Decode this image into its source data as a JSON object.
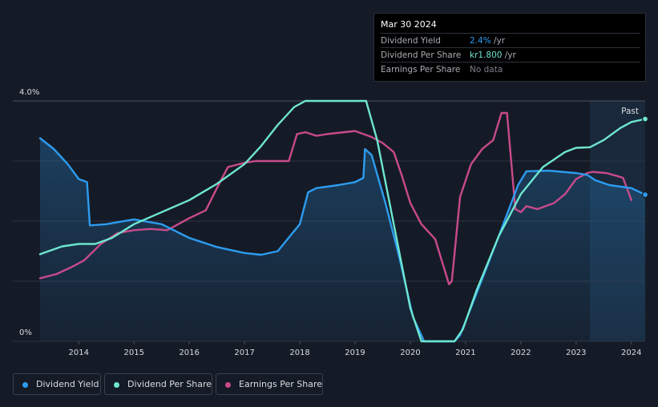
{
  "tooltip": {
    "date": "Mar 30 2024",
    "rows": [
      {
        "label": "Dividend Yield",
        "value": "2.4%",
        "unit": " /yr",
        "color": "#2d9cf0"
      },
      {
        "label": "Dividend Per Share",
        "value": "kr1.800",
        "unit": " /yr",
        "color": "#6ee6cf"
      },
      {
        "label": "Earnings Per Share",
        "value": "No data",
        "unit": "",
        "color": "#7d8088"
      }
    ]
  },
  "legend": [
    {
      "label": "Dividend Yield",
      "color": "#2d9cf0"
    },
    {
      "label": "Dividend Per Share",
      "color": "#6ee6cf"
    },
    {
      "label": "Earnings Per Share",
      "color": "#c84a8b"
    }
  ],
  "chart_data": {
    "type": "line",
    "title": "",
    "xlabel": "",
    "ylabel": "",
    "ylim": [
      0,
      4.0
    ],
    "xlim": [
      2013.3,
      2024.25
    ],
    "y_tick_labels": [
      "4.0%",
      "0%"
    ],
    "x_ticks": [
      2014,
      2015,
      2016,
      2017,
      2018,
      2019,
      2020,
      2021,
      2022,
      2023,
      2024
    ],
    "x_tick_labels": [
      "2014",
      "2015",
      "2016",
      "2017",
      "2018",
      "2019",
      "2020",
      "2021",
      "2022",
      "2023",
      "2024"
    ],
    "past_label": "Past",
    "past_region_start": 2023.25,
    "grid": true,
    "series": [
      {
        "name": "Dividend Yield",
        "color": "#2d9cf0",
        "x": [
          2013.3,
          2013.55,
          2013.8,
          2014.0,
          2014.15,
          2014.2,
          2014.5,
          2015.0,
          2015.5,
          2016.0,
          2016.5,
          2017.0,
          2017.3,
          2017.6,
          2018.0,
          2018.15,
          2018.3,
          2018.7,
          2019.0,
          2019.15,
          2019.18,
          2019.3,
          2019.55,
          2019.8,
          2020.05,
          2020.25,
          2020.8,
          2020.9,
          2021.2,
          2021.6,
          2021.95,
          2022.1,
          2022.5,
          2023.0,
          2023.2,
          2023.35,
          2023.6,
          2024.0,
          2024.25
        ],
        "values": [
          3.38,
          3.2,
          2.95,
          2.7,
          2.65,
          1.93,
          1.95,
          2.03,
          1.95,
          1.72,
          1.57,
          1.47,
          1.44,
          1.5,
          1.95,
          2.48,
          2.55,
          2.6,
          2.65,
          2.72,
          3.2,
          3.1,
          2.3,
          1.4,
          0.4,
          0.0,
          0.0,
          0.1,
          0.8,
          1.75,
          2.6,
          2.83,
          2.84,
          2.8,
          2.77,
          2.68,
          2.6,
          2.55,
          2.44
        ]
      },
      {
        "name": "Dividend Per Share",
        "color": "#6ee6cf",
        "x": [
          2013.3,
          2013.7,
          2014.0,
          2014.3,
          2014.6,
          2015.0,
          2015.5,
          2016.0,
          2016.5,
          2017.0,
          2017.3,
          2017.6,
          2017.9,
          2018.1,
          2018.5,
          2019.0,
          2019.2,
          2019.4,
          2019.7,
          2020.0,
          2020.2,
          2020.8,
          2020.95,
          2021.2,
          2021.6,
          2022.0,
          2022.4,
          2022.8,
          2023.0,
          2023.25,
          2023.5,
          2023.8,
          2024.0,
          2024.25
        ],
        "values": [
          1.45,
          1.58,
          1.62,
          1.62,
          1.72,
          1.95,
          2.15,
          2.35,
          2.62,
          2.95,
          3.25,
          3.6,
          3.9,
          4.0,
          4.0,
          4.0,
          4.0,
          3.35,
          1.95,
          0.55,
          0.0,
          0.0,
          0.2,
          0.85,
          1.75,
          2.45,
          2.9,
          3.15,
          3.22,
          3.23,
          3.35,
          3.55,
          3.65,
          3.7
        ]
      },
      {
        "name": "Earnings Per Share",
        "color": "#c84a8b",
        "x": [
          2013.3,
          2013.6,
          2013.9,
          2014.1,
          2014.4,
          2014.7,
          2015.0,
          2015.3,
          2015.6,
          2016.0,
          2016.3,
          2016.5,
          2016.7,
          2017.0,
          2017.2,
          2017.5,
          2017.8,
          2017.95,
          2018.1,
          2018.3,
          2018.5,
          2018.8,
          2019.0,
          2019.3,
          2019.5,
          2019.7,
          2019.85,
          2020.0,
          2020.2,
          2020.45,
          2020.65,
          2020.7,
          2020.75,
          2020.8,
          2020.9,
          2021.1,
          2021.3,
          2021.5,
          2021.65,
          2021.75,
          2021.9,
          2022.0,
          2022.1,
          2022.3,
          2022.6,
          2022.8,
          2023.0,
          2023.2,
          2023.3,
          2023.55,
          2023.75,
          2023.85,
          2024.0
        ],
        "values": [
          1.05,
          1.12,
          1.25,
          1.35,
          1.62,
          1.8,
          1.85,
          1.87,
          1.85,
          2.05,
          2.18,
          2.55,
          2.9,
          2.97,
          3.0,
          3.0,
          3.0,
          3.45,
          3.48,
          3.42,
          3.45,
          3.48,
          3.5,
          3.4,
          3.3,
          3.15,
          2.75,
          2.3,
          1.95,
          1.7,
          1.1,
          0.95,
          1.0,
          1.45,
          2.4,
          2.95,
          3.2,
          3.35,
          3.8,
          3.8,
          2.2,
          2.15,
          2.25,
          2.2,
          2.3,
          2.45,
          2.7,
          2.8,
          2.82,
          2.8,
          2.75,
          2.72,
          2.35
        ]
      }
    ]
  }
}
